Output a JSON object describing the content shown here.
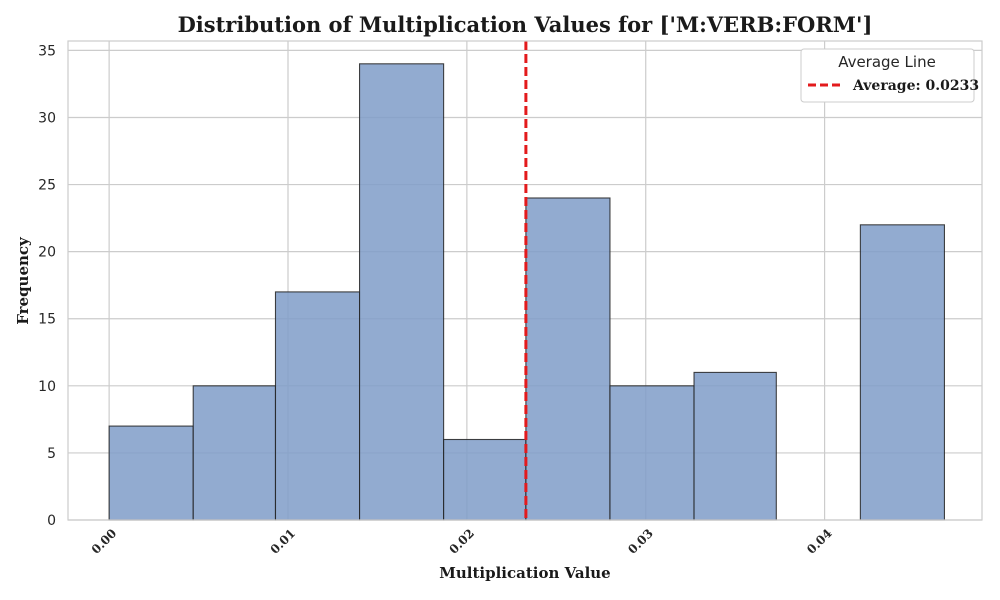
{
  "chart_data": {
    "type": "bar",
    "title": "Distribution of Multiplication Values for ['M:VERB:FORM']",
    "xlabel": "Multiplication Value",
    "ylabel": "Frequency",
    "xlim": [
      -0.0023,
      0.0488
    ],
    "ylim": [
      0,
      35.7
    ],
    "xticks": [
      0.0,
      0.01,
      0.02,
      0.03,
      0.04
    ],
    "xtick_labels": [
      "0.00",
      "0.01",
      "0.02",
      "0.03",
      "0.04"
    ],
    "yticks": [
      0,
      5,
      10,
      15,
      20,
      25,
      30,
      35
    ],
    "ytick_labels": [
      "0",
      "5",
      "10",
      "15",
      "20",
      "25",
      "30",
      "35"
    ],
    "grid": true,
    "bins": [
      {
        "x0": 0.0,
        "x1": 0.0047,
        "count": 7
      },
      {
        "x0": 0.0047,
        "x1": 0.0093,
        "count": 10
      },
      {
        "x0": 0.0093,
        "x1": 0.014,
        "count": 17
      },
      {
        "x0": 0.014,
        "x1": 0.0187,
        "count": 34
      },
      {
        "x0": 0.0187,
        "x1": 0.0233,
        "count": 6
      },
      {
        "x0": 0.0233,
        "x1": 0.028,
        "count": 24
      },
      {
        "x0": 0.028,
        "x1": 0.0327,
        "count": 10
      },
      {
        "x0": 0.0327,
        "x1": 0.0373,
        "count": 11
      },
      {
        "x0": 0.0373,
        "x1": 0.042,
        "count": 0
      },
      {
        "x0": 0.042,
        "x1": 0.0467,
        "count": 22
      }
    ],
    "average": 0.0233,
    "legend": {
      "title": "Average Line",
      "entry": "Average: 0.0233",
      "placement": "top-right"
    },
    "colors": {
      "bar_fill": "#7f9cc8",
      "bar_edge": "#222222",
      "average_line": "#e31a1c",
      "grid": "#cccccc"
    }
  }
}
